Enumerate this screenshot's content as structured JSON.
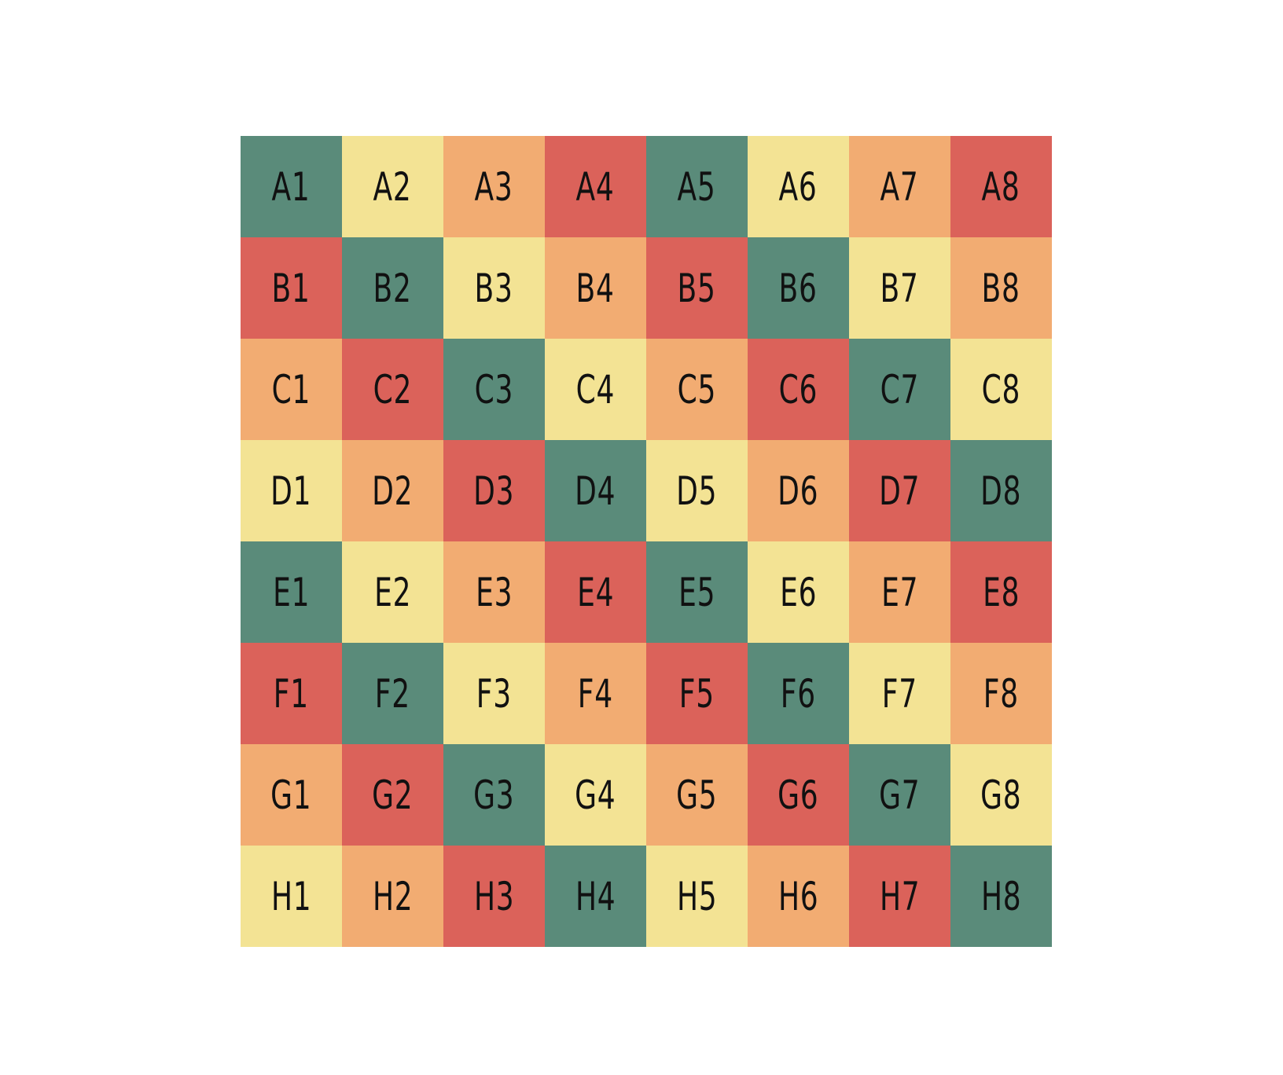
{
  "palette": {
    "green": "#5a8b7a",
    "yellow": "#f3e394",
    "orange": "#f2ac72",
    "red": "#db625a"
  },
  "grid": {
    "rows": [
      {
        "cells": [
          {
            "label": "A1",
            "color": "green"
          },
          {
            "label": "A2",
            "color": "yellow"
          },
          {
            "label": "A3",
            "color": "orange"
          },
          {
            "label": "A4",
            "color": "red"
          },
          {
            "label": "A5",
            "color": "green"
          },
          {
            "label": "A6",
            "color": "yellow"
          },
          {
            "label": "A7",
            "color": "orange"
          },
          {
            "label": "A8",
            "color": "red"
          }
        ]
      },
      {
        "cells": [
          {
            "label": "B1",
            "color": "red"
          },
          {
            "label": "B2",
            "color": "green"
          },
          {
            "label": "B3",
            "color": "yellow"
          },
          {
            "label": "B4",
            "color": "orange"
          },
          {
            "label": "B5",
            "color": "red"
          },
          {
            "label": "B6",
            "color": "green"
          },
          {
            "label": "B7",
            "color": "yellow"
          },
          {
            "label": "B8",
            "color": "orange"
          }
        ]
      },
      {
        "cells": [
          {
            "label": "C1",
            "color": "orange"
          },
          {
            "label": "C2",
            "color": "red"
          },
          {
            "label": "C3",
            "color": "green"
          },
          {
            "label": "C4",
            "color": "yellow"
          },
          {
            "label": "C5",
            "color": "orange"
          },
          {
            "label": "C6",
            "color": "red"
          },
          {
            "label": "C7",
            "color": "green"
          },
          {
            "label": "C8",
            "color": "yellow"
          }
        ]
      },
      {
        "cells": [
          {
            "label": "D1",
            "color": "yellow"
          },
          {
            "label": "D2",
            "color": "orange"
          },
          {
            "label": "D3",
            "color": "red"
          },
          {
            "label": "D4",
            "color": "green"
          },
          {
            "label": "D5",
            "color": "yellow"
          },
          {
            "label": "D6",
            "color": "orange"
          },
          {
            "label": "D7",
            "color": "red"
          },
          {
            "label": "D8",
            "color": "green"
          }
        ]
      },
      {
        "cells": [
          {
            "label": "E1",
            "color": "green"
          },
          {
            "label": "E2",
            "color": "yellow"
          },
          {
            "label": "E3",
            "color": "orange"
          },
          {
            "label": "E4",
            "color": "red"
          },
          {
            "label": "E5",
            "color": "green"
          },
          {
            "label": "E6",
            "color": "yellow"
          },
          {
            "label": "E7",
            "color": "orange"
          },
          {
            "label": "E8",
            "color": "red"
          }
        ]
      },
      {
        "cells": [
          {
            "label": "F1",
            "color": "red"
          },
          {
            "label": "F2",
            "color": "green"
          },
          {
            "label": "F3",
            "color": "yellow"
          },
          {
            "label": "F4",
            "color": "orange"
          },
          {
            "label": "F5",
            "color": "red"
          },
          {
            "label": "F6",
            "color": "green"
          },
          {
            "label": "F7",
            "color": "yellow"
          },
          {
            "label": "F8",
            "color": "orange"
          }
        ]
      },
      {
        "cells": [
          {
            "label": "G1",
            "color": "orange"
          },
          {
            "label": "G2",
            "color": "red"
          },
          {
            "label": "G3",
            "color": "green"
          },
          {
            "label": "G4",
            "color": "yellow"
          },
          {
            "label": "G5",
            "color": "orange"
          },
          {
            "label": "G6",
            "color": "red"
          },
          {
            "label": "G7",
            "color": "green"
          },
          {
            "label": "G8",
            "color": "yellow"
          }
        ]
      },
      {
        "cells": [
          {
            "label": "H1",
            "color": "yellow"
          },
          {
            "label": "H2",
            "color": "orange"
          },
          {
            "label": "H3",
            "color": "red"
          },
          {
            "label": "H4",
            "color": "green"
          },
          {
            "label": "H5",
            "color": "yellow"
          },
          {
            "label": "H6",
            "color": "orange"
          },
          {
            "label": "H7",
            "color": "red"
          },
          {
            "label": "H8",
            "color": "green"
          }
        ]
      }
    ]
  }
}
